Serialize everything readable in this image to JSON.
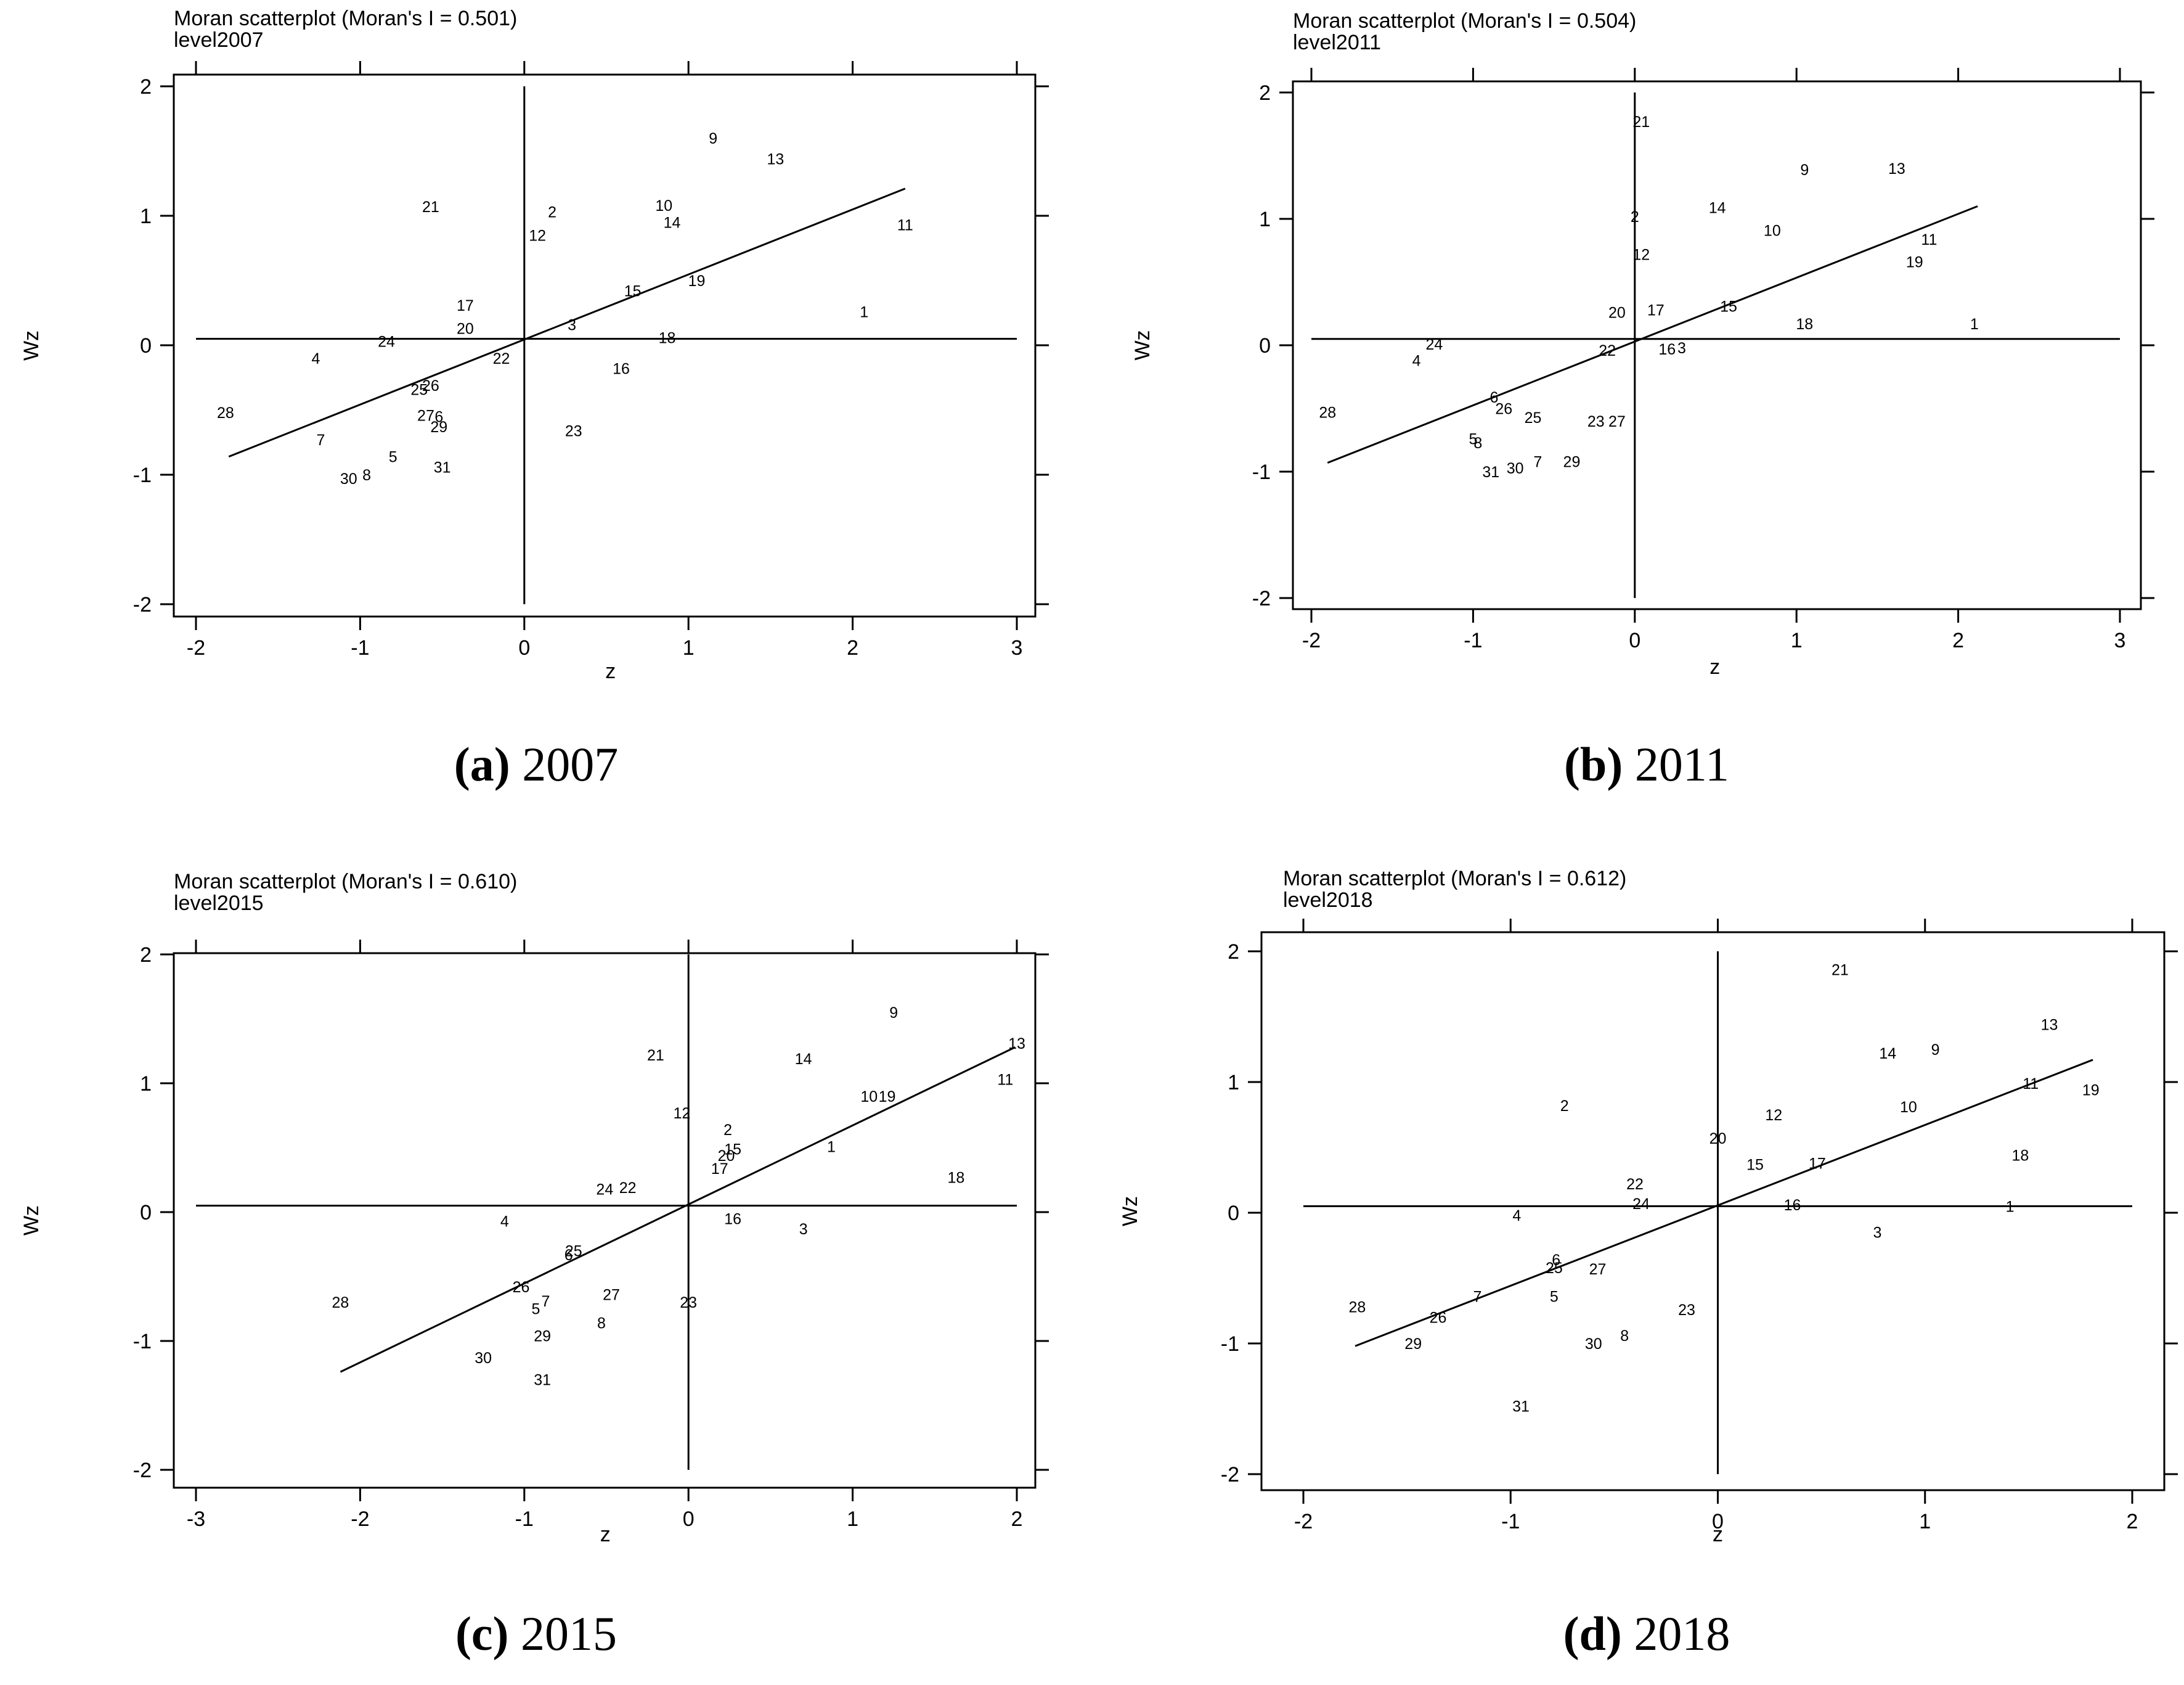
{
  "chart_data": [
    {
      "type": "scatter",
      "title": "Moran scatterplot (Moran's I = 0.501)",
      "subtitle": "level2007",
      "xlabel": "z",
      "ylabel": "Wz",
      "xlim": [
        -2,
        3
      ],
      "ylim": [
        -2,
        2
      ],
      "xticks": [
        "-2",
        "-1",
        "0",
        "1",
        "2",
        "3"
      ],
      "yticks": [
        "-2",
        "-1",
        "0",
        "1",
        "2"
      ],
      "caption_letter": "(a)",
      "caption_year": "2007",
      "fit_line": {
        "x": [
          -1.8,
          2.32
        ],
        "y": [
          -0.86,
          1.21
        ]
      },
      "points": [
        {
          "label": "1",
          "x": 2.07,
          "y": 0.27
        },
        {
          "label": "2",
          "x": 0.17,
          "y": 1.04
        },
        {
          "label": "3",
          "x": 0.29,
          "y": 0.17
        },
        {
          "label": "4",
          "x": -1.27,
          "y": -0.09
        },
        {
          "label": "5",
          "x": -0.8,
          "y": -0.85
        },
        {
          "label": "7",
          "x": -1.24,
          "y": -0.72
        },
        {
          "label": "8",
          "x": -0.96,
          "y": -0.99
        },
        {
          "label": "9",
          "x": 1.15,
          "y": 1.61
        },
        {
          "label": "10",
          "x": 0.85,
          "y": 1.09
        },
        {
          "label": "11",
          "x": 2.32,
          "y": 0.94
        },
        {
          "label": "12",
          "x": 0.08,
          "y": 0.86
        },
        {
          "label": "13",
          "x": 1.53,
          "y": 1.45
        },
        {
          "label": "14",
          "x": 0.9,
          "y": 0.96
        },
        {
          "label": "15",
          "x": 0.66,
          "y": 0.43
        },
        {
          "label": "16",
          "x": 0.59,
          "y": -0.17
        },
        {
          "label": "17",
          "x": -0.36,
          "y": 0.32
        },
        {
          "label": "18",
          "x": 0.87,
          "y": 0.07
        },
        {
          "label": "19",
          "x": 1.05,
          "y": 0.51
        },
        {
          "label": "20",
          "x": -0.36,
          "y": 0.14
        },
        {
          "label": "21",
          "x": -0.57,
          "y": 1.08
        },
        {
          "label": "22",
          "x": -0.14,
          "y": -0.09
        },
        {
          "label": "23",
          "x": 0.3,
          "y": -0.65
        },
        {
          "label": "24",
          "x": -0.84,
          "y": 0.04
        },
        {
          "label": "25",
          "x": -0.64,
          "y": -0.33
        },
        {
          "label": "26",
          "x": -0.57,
          "y": -0.3
        },
        {
          "label": "27",
          "x": -0.6,
          "y": -0.53
        },
        {
          "label": "6",
          "x": -0.52,
          "y": -0.54
        },
        {
          "label": "28",
          "x": -1.82,
          "y": -0.51
        },
        {
          "label": "29",
          "x": -0.52,
          "y": -0.62
        },
        {
          "label": "30",
          "x": -1.07,
          "y": -1.02
        },
        {
          "label": "31",
          "x": -0.5,
          "y": -0.93
        }
      ]
    },
    {
      "type": "scatter",
      "title": "Moran scatterplot (Moran's I = 0.504)",
      "subtitle": "level2011",
      "xlabel": "z",
      "ylabel": "Wz",
      "xlim": [
        -2,
        3
      ],
      "ylim": [
        -2,
        2
      ],
      "xticks": [
        "-2",
        "-1",
        "0",
        "1",
        "2",
        "3"
      ],
      "yticks": [
        "-2",
        "-1",
        "0",
        "1",
        "2"
      ],
      "caption_letter": "(b)",
      "caption_year": "2011",
      "fit_line": {
        "x": [
          -1.9,
          2.12
        ],
        "y": [
          -0.93,
          1.1
        ]
      },
      "points": [
        {
          "label": "1",
          "x": 2.1,
          "y": 0.18
        },
        {
          "label": "2",
          "x": 0.0,
          "y": 1.03
        },
        {
          "label": "3",
          "x": 0.29,
          "y": -0.01
        },
        {
          "label": "4",
          "x": -1.35,
          "y": -0.11
        },
        {
          "label": "5",
          "x": -1.0,
          "y": -0.73
        },
        {
          "label": "8",
          "x": -0.97,
          "y": -0.76
        },
        {
          "label": "6",
          "x": -0.87,
          "y": -0.4
        },
        {
          "label": "7",
          "x": -0.6,
          "y": -0.91
        },
        {
          "label": "9",
          "x": 1.05,
          "y": 1.4
        },
        {
          "label": "10",
          "x": 0.85,
          "y": 0.92
        },
        {
          "label": "11",
          "x": 1.82,
          "y": 0.85
        },
        {
          "label": "12",
          "x": 0.04,
          "y": 0.73
        },
        {
          "label": "13",
          "x": 1.62,
          "y": 1.41
        },
        {
          "label": "14",
          "x": 0.51,
          "y": 1.1
        },
        {
          "label": "15",
          "x": 0.58,
          "y": 0.32
        },
        {
          "label": "16",
          "x": 0.2,
          "y": -0.02
        },
        {
          "label": "17",
          "x": 0.13,
          "y": 0.29
        },
        {
          "label": "18",
          "x": 1.05,
          "y": 0.18
        },
        {
          "label": "19",
          "x": 1.73,
          "y": 0.67
        },
        {
          "label": "20",
          "x": -0.11,
          "y": 0.27
        },
        {
          "label": "21",
          "x": 0.04,
          "y": 1.78
        },
        {
          "label": "22",
          "x": -0.17,
          "y": -0.03
        },
        {
          "label": "23",
          "x": -0.24,
          "y": -0.59
        },
        {
          "label": "27",
          "x": -0.11,
          "y": -0.59
        },
        {
          "label": "24",
          "x": -1.24,
          "y": 0.02
        },
        {
          "label": "25",
          "x": -0.63,
          "y": -0.56
        },
        {
          "label": "26",
          "x": -0.81,
          "y": -0.49
        },
        {
          "label": "28",
          "x": -1.9,
          "y": -0.52
        },
        {
          "label": "29",
          "x": -0.39,
          "y": -0.91
        },
        {
          "label": "30",
          "x": -0.74,
          "y": -0.96
        },
        {
          "label": "31",
          "x": -0.89,
          "y": -0.99
        }
      ]
    },
    {
      "type": "scatter",
      "title": "Moran scatterplot (Moran's I = 0.610)",
      "subtitle": "level2015",
      "xlabel": "z",
      "ylabel": "Wz",
      "xlim": [
        -3,
        2
      ],
      "ylim": [
        -2,
        2
      ],
      "xticks": [
        "-3",
        "-2",
        "-1",
        "0",
        "1",
        "2"
      ],
      "yticks": [
        "-2",
        "-1",
        "0",
        "1",
        "2"
      ],
      "caption_letter": "(c)",
      "caption_year": "2015",
      "fit_line": {
        "x": [
          -2.12,
          1.99
        ],
        "y": [
          -1.24,
          1.28
        ]
      },
      "points": [
        {
          "label": "1",
          "x": 0.87,
          "y": 0.52
        },
        {
          "label": "2",
          "x": 0.24,
          "y": 0.65
        },
        {
          "label": "3",
          "x": 0.7,
          "y": -0.12
        },
        {
          "label": "4",
          "x": -1.12,
          "y": -0.06
        },
        {
          "label": "5",
          "x": -0.93,
          "y": -0.74
        },
        {
          "label": "7",
          "x": -0.87,
          "y": -0.68
        },
        {
          "label": "8",
          "x": -0.53,
          "y": -0.85
        },
        {
          "label": "9",
          "x": 1.25,
          "y": 1.56
        },
        {
          "label": "10",
          "x": 1.1,
          "y": 0.91
        },
        {
          "label": "19",
          "x": 1.21,
          "y": 0.91
        },
        {
          "label": "11",
          "x": 1.93,
          "y": 1.04
        },
        {
          "label": "12",
          "x": -0.04,
          "y": 0.78
        },
        {
          "label": "13",
          "x": 2.0,
          "y": 1.32
        },
        {
          "label": "14",
          "x": 0.7,
          "y": 1.2
        },
        {
          "label": "15",
          "x": 0.27,
          "y": 0.5
        },
        {
          "label": "16",
          "x": 0.27,
          "y": -0.04
        },
        {
          "label": "17",
          "x": 0.19,
          "y": 0.35
        },
        {
          "label": "18",
          "x": 1.63,
          "y": 0.28
        },
        {
          "label": "20",
          "x": 0.23,
          "y": 0.45
        },
        {
          "label": "21",
          "x": -0.2,
          "y": 1.23
        },
        {
          "label": "22",
          "x": -0.37,
          "y": 0.2
        },
        {
          "label": "23",
          "x": 0.0,
          "y": -0.69
        },
        {
          "label": "24",
          "x": -0.51,
          "y": 0.19
        },
        {
          "label": "25",
          "x": -0.7,
          "y": -0.29
        },
        {
          "label": "6",
          "x": -0.73,
          "y": -0.32
        },
        {
          "label": "26",
          "x": -1.02,
          "y": -0.57
        },
        {
          "label": "27",
          "x": -0.47,
          "y": -0.63
        },
        {
          "label": "28",
          "x": -2.12,
          "y": -0.69
        },
        {
          "label": "29",
          "x": -0.89,
          "y": -0.95
        },
        {
          "label": "30",
          "x": -1.25,
          "y": -1.12
        },
        {
          "label": "31",
          "x": -0.89,
          "y": -1.29
        }
      ]
    },
    {
      "type": "scatter",
      "title": "Moran scatterplot (Moran's I = 0.612)",
      "subtitle": "level2018",
      "xlabel": "z",
      "ylabel": "Wz",
      "xlim": [
        -2,
        2
      ],
      "ylim": [
        -2,
        2
      ],
      "xticks": [
        "-2",
        "-1",
        "0",
        "1",
        "2"
      ],
      "yticks": [
        "-2",
        "-1",
        "0",
        "1",
        "2"
      ],
      "caption_letter": "(d)",
      "caption_year": "2018",
      "fit_line": {
        "x": [
          -1.75,
          1.81
        ],
        "y": [
          -1.02,
          1.17
        ]
      },
      "points": [
        {
          "label": "1",
          "x": 1.41,
          "y": 0.06
        },
        {
          "label": "2",
          "x": -0.74,
          "y": 0.83
        },
        {
          "label": "3",
          "x": 0.77,
          "y": -0.14
        },
        {
          "label": "4",
          "x": -0.97,
          "y": -0.01
        },
        {
          "label": "5",
          "x": -0.79,
          "y": -0.63
        },
        {
          "label": "6",
          "x": -0.78,
          "y": -0.35
        },
        {
          "label": "7",
          "x": -1.16,
          "y": -0.63
        },
        {
          "label": "8",
          "x": -0.45,
          "y": -0.93
        },
        {
          "label": "9",
          "x": 1.05,
          "y": 1.26
        },
        {
          "label": "10",
          "x": 0.92,
          "y": 0.82
        },
        {
          "label": "11",
          "x": 1.51,
          "y": 1.0
        },
        {
          "label": "12",
          "x": 0.27,
          "y": 0.76
        },
        {
          "label": "13",
          "x": 1.6,
          "y": 1.45
        },
        {
          "label": "14",
          "x": 0.82,
          "y": 1.23
        },
        {
          "label": "15",
          "x": 0.18,
          "y": 0.38
        },
        {
          "label": "16",
          "x": 0.36,
          "y": 0.07
        },
        {
          "label": "17",
          "x": 0.48,
          "y": 0.39
        },
        {
          "label": "18",
          "x": 1.46,
          "y": 0.45
        },
        {
          "label": "19",
          "x": 1.8,
          "y": 0.95
        },
        {
          "label": "20",
          "x": 0.0,
          "y": 0.58
        },
        {
          "label": "21",
          "x": 0.59,
          "y": 1.87
        },
        {
          "label": "22",
          "x": -0.4,
          "y": 0.23
        },
        {
          "label": "23",
          "x": -0.15,
          "y": -0.73
        },
        {
          "label": "24",
          "x": -0.37,
          "y": 0.08
        },
        {
          "label": "25",
          "x": -0.79,
          "y": -0.41
        },
        {
          "label": "26",
          "x": -1.35,
          "y": -0.79
        },
        {
          "label": "27",
          "x": -0.58,
          "y": -0.42
        },
        {
          "label": "28",
          "x": -1.74,
          "y": -0.71
        },
        {
          "label": "29",
          "x": -1.47,
          "y": -0.99
        },
        {
          "label": "30",
          "x": -0.6,
          "y": -0.99
        },
        {
          "label": "31",
          "x": -0.95,
          "y": -1.47
        }
      ]
    }
  ]
}
